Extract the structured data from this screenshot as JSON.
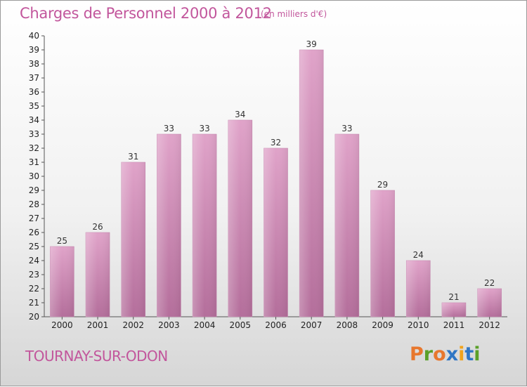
{
  "header": {
    "title": "Charges de Personnel 2000 à 2012",
    "unit": "(en milliers d'€)"
  },
  "footer": {
    "commune": "TOURNAY-SUR-ODON",
    "logo": [
      "P",
      "r",
      "o",
      "x",
      "i",
      "t",
      "i"
    ]
  },
  "colors": {
    "title": "#c2569c",
    "bar_top": "#e0a3c9",
    "bar_bottom": "#b46e9b",
    "logo": [
      "#e8772d",
      "#5aa028",
      "#e8772d",
      "#2f76c4",
      "#f1a31b",
      "#2f76c4",
      "#5aa028"
    ]
  },
  "chart_data": {
    "type": "bar",
    "categories": [
      "2000",
      "2001",
      "2002",
      "2003",
      "2004",
      "2005",
      "2006",
      "2007",
      "2008",
      "2009",
      "2010",
      "2011",
      "2012"
    ],
    "values": [
      25,
      26,
      31,
      33,
      33,
      34,
      32,
      39,
      33,
      29,
      24,
      21,
      22
    ],
    "title": "Charges de Personnel 2000 à 2012",
    "ylim": [
      20,
      40
    ],
    "ytick_step": 1,
    "grid": false
  }
}
